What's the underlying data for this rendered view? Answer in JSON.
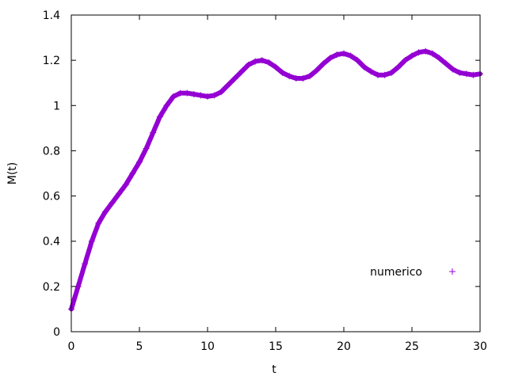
{
  "chart_data": {
    "type": "scatter",
    "title": "",
    "xlabel": "t",
    "ylabel": "M(t)",
    "xlim": [
      0,
      30
    ],
    "ylim": [
      0,
      1.4
    ],
    "xticks": [
      "0",
      "5",
      "10",
      "15",
      "20",
      "25",
      "30"
    ],
    "yticks": [
      "0",
      "0.2",
      "0.4",
      "0.6",
      "0.8",
      "1",
      "1.2",
      "1.4"
    ],
    "grid": false,
    "legend_position": "right",
    "series": [
      {
        "name": "numerico",
        "marker": "+",
        "color": "#9400d3",
        "x": [
          0,
          0.5,
          1,
          1.5,
          2,
          2.5,
          3,
          3.5,
          4,
          4.5,
          5,
          5.5,
          6,
          6.5,
          7,
          7.5,
          8,
          8.5,
          9,
          9.5,
          10,
          10.5,
          11,
          11.5,
          12,
          12.5,
          13,
          13.5,
          14,
          14.5,
          15,
          15.5,
          16,
          16.5,
          17,
          17.5,
          18,
          18.5,
          19,
          19.5,
          20,
          20.5,
          21,
          21.5,
          22,
          22.5,
          23,
          23.5,
          24,
          24.5,
          25,
          25.5,
          26,
          26.5,
          27,
          27.5,
          28,
          28.5,
          29,
          29.5,
          30
        ],
        "y": [
          0.1,
          0.2,
          0.3,
          0.4,
          0.48,
          0.53,
          0.57,
          0.61,
          0.65,
          0.7,
          0.75,
          0.81,
          0.88,
          0.95,
          1.0,
          1.04,
          1.055,
          1.055,
          1.05,
          1.045,
          1.04,
          1.045,
          1.06,
          1.09,
          1.12,
          1.15,
          1.18,
          1.195,
          1.2,
          1.19,
          1.17,
          1.145,
          1.13,
          1.12,
          1.12,
          1.13,
          1.155,
          1.185,
          1.21,
          1.225,
          1.23,
          1.22,
          1.2,
          1.17,
          1.15,
          1.135,
          1.135,
          1.145,
          1.17,
          1.2,
          1.22,
          1.235,
          1.24,
          1.23,
          1.21,
          1.185,
          1.16,
          1.145,
          1.14,
          1.135,
          1.14
        ]
      }
    ]
  }
}
